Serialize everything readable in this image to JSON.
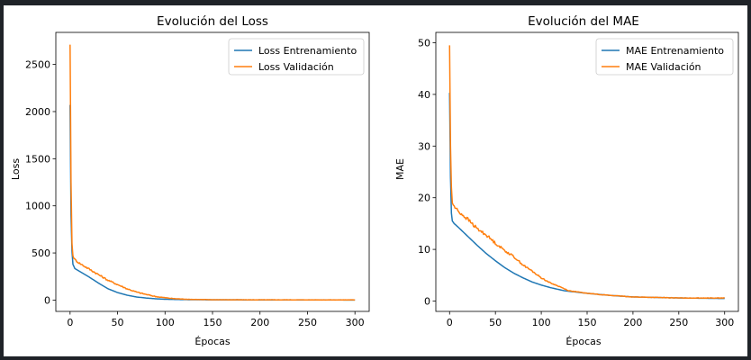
{
  "colors": {
    "train": "#1f77b4",
    "val": "#ff7f0e",
    "background": "#1f2328"
  },
  "chart_data": [
    {
      "type": "line",
      "title": "Evolución del Loss",
      "xlabel": "Épocas",
      "ylabel": "Loss",
      "xlim": [
        -15,
        315
      ],
      "ylim": [
        -120,
        2840
      ],
      "xticks": [
        0,
        50,
        100,
        150,
        200,
        250,
        300
      ],
      "yticks": [
        0,
        500,
        1000,
        1500,
        2000,
        2500
      ],
      "grid": false,
      "legend": "top-right",
      "series": [
        {
          "name": "Loss Entrenamiento",
          "color": "#1f77b4",
          "noise": 0,
          "points": [
            [
              0,
              2070
            ],
            [
              1,
              900
            ],
            [
              2,
              520
            ],
            [
              3,
              380
            ],
            [
              5,
              335
            ],
            [
              10,
              305
            ],
            [
              20,
              245
            ],
            [
              30,
              180
            ],
            [
              40,
              120
            ],
            [
              50,
              80
            ],
            [
              60,
              52
            ],
            [
              70,
              33
            ],
            [
              80,
              22
            ],
            [
              90,
              14
            ],
            [
              100,
              9
            ],
            [
              120,
              5
            ],
            [
              150,
              3
            ],
            [
              200,
              2
            ],
            [
              300,
              1
            ]
          ]
        },
        {
          "name": "Loss Validación",
          "color": "#ff7f0e",
          "noise": 10,
          "points": [
            [
              0,
              2710
            ],
            [
              1,
              1250
            ],
            [
              2,
              600
            ],
            [
              3,
              470
            ],
            [
              5,
              430
            ],
            [
              10,
              390
            ],
            [
              20,
              330
            ],
            [
              30,
              270
            ],
            [
              40,
              210
            ],
            [
              50,
              165
            ],
            [
              60,
              120
            ],
            [
              70,
              85
            ],
            [
              80,
              60
            ],
            [
              90,
              38
            ],
            [
              100,
              25
            ],
            [
              110,
              15
            ],
            [
              125,
              8
            ],
            [
              150,
              4
            ],
            [
              200,
              3
            ],
            [
              300,
              2
            ]
          ]
        }
      ]
    },
    {
      "type": "line",
      "title": "Evolución del MAE",
      "xlabel": "Épocas",
      "ylabel": "MAE",
      "xlim": [
        -15,
        315
      ],
      "ylim": [
        -2,
        52
      ],
      "xticks": [
        0,
        50,
        100,
        150,
        200,
        250,
        300
      ],
      "yticks": [
        0,
        10,
        20,
        30,
        40,
        50
      ],
      "grid": false,
      "legend": "top-right",
      "series": [
        {
          "name": "MAE Entrenamiento",
          "color": "#1f77b4",
          "noise": 0,
          "points": [
            [
              0,
              40.3
            ],
            [
              1,
              24
            ],
            [
              2,
              17
            ],
            [
              3,
              15.5
            ],
            [
              5,
              15
            ],
            [
              10,
              14.2
            ],
            [
              20,
              12.5
            ],
            [
              30,
              10.8
            ],
            [
              40,
              9.2
            ],
            [
              50,
              7.8
            ],
            [
              60,
              6.5
            ],
            [
              70,
              5.4
            ],
            [
              80,
              4.5
            ],
            [
              90,
              3.7
            ],
            [
              100,
              3.1
            ],
            [
              110,
              2.6
            ],
            [
              125,
              2.0
            ],
            [
              150,
              1.5
            ],
            [
              175,
              1.1
            ],
            [
              200,
              0.8
            ],
            [
              250,
              0.6
            ],
            [
              300,
              0.5
            ]
          ]
        },
        {
          "name": "MAE Validación",
          "color": "#ff7f0e",
          "noise": 0.35,
          "points": [
            [
              0,
              49.5
            ],
            [
              1,
              30
            ],
            [
              2,
              22
            ],
            [
              3,
              19
            ],
            [
              5,
              18.3
            ],
            [
              10,
              17.3
            ],
            [
              20,
              15.8
            ],
            [
              30,
              14
            ],
            [
              40,
              12.8
            ],
            [
              50,
              11.2
            ],
            [
              60,
              9.8
            ],
            [
              70,
              8.6
            ],
            [
              80,
              7
            ],
            [
              90,
              5.8
            ],
            [
              100,
              4.5
            ],
            [
              110,
              3.5
            ],
            [
              120,
              2.8
            ],
            [
              130,
              2
            ],
            [
              150,
              1.5
            ],
            [
              175,
              1.1
            ],
            [
              200,
              0.8
            ],
            [
              250,
              0.6
            ],
            [
              280,
              0.6
            ],
            [
              300,
              0.6
            ]
          ]
        }
      ]
    }
  ]
}
